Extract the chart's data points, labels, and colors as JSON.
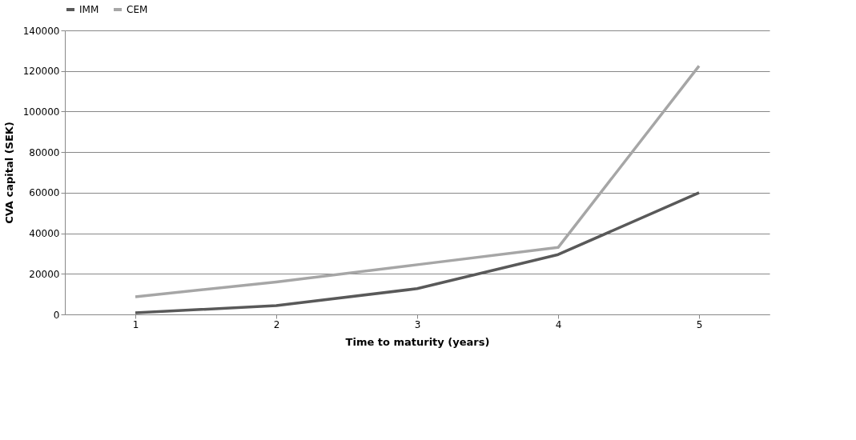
{
  "chart_data": {
    "type": "line",
    "xlabel": "Time to maturity (years)",
    "ylabel": "CVA capital  (SEK)",
    "categories": [
      "1",
      "2",
      "3",
      "4",
      "5"
    ],
    "series": [
      {
        "name": "IMM",
        "color": "#595959",
        "values": [
          800,
          4300,
          12700,
          29500,
          60000
        ]
      },
      {
        "name": "CEM",
        "color": "#a6a6a6",
        "values": [
          8700,
          16000,
          24500,
          33000,
          122500
        ]
      }
    ],
    "ylim": [
      0,
      140000
    ],
    "yticks": [
      0,
      20000,
      40000,
      60000,
      80000,
      100000,
      120000,
      140000
    ],
    "grid": "y",
    "legend": "top",
    "marker": "none",
    "line_style": "solid"
  }
}
